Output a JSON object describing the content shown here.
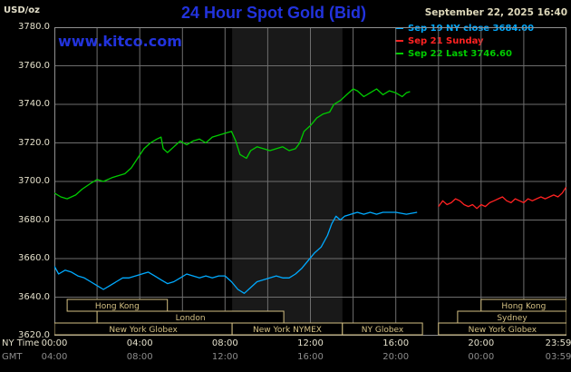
{
  "header": {
    "units_label": "USD/oz",
    "title": "24 Hour Spot Gold (Bid)",
    "datetime": "September 22, 2025 16:40",
    "watermark": "www.kitco.com"
  },
  "legend": {
    "items": [
      {
        "label": "Sep 19 NY close 3684.00",
        "color": "#00aaff"
      },
      {
        "label": "Sep 21 Sunday",
        "color": "#ff2222"
      },
      {
        "label": "Sep 22 Last 3746.60",
        "color": "#00cc00"
      }
    ]
  },
  "colors": {
    "background": "#000000",
    "grid": "#6e6e6e",
    "border": "#909090",
    "band": "#191919",
    "session": "#d4c083",
    "axis_text": "#e3dfca",
    "axis_text_dim": "#8c8c8c",
    "title_blue": "#2233dd",
    "date_text": "#ded8ba"
  },
  "chart_data": {
    "type": "line",
    "title": "24 Hour Spot Gold (Bid)",
    "ylabel": "USD/oz",
    "ylim": [
      3620,
      3780
    ],
    "y_tick_step": 20,
    "y_tick_labels": [
      "3780.0",
      "3760.0",
      "3740.0",
      "3720.0",
      "3700.0",
      "3680.0",
      "3660.0",
      "3640.0",
      "3620.0"
    ],
    "x_hours_range": [
      0,
      24
    ],
    "grid": {
      "vertical_step_hours": 2,
      "horizontal_step": 20,
      "on": true
    },
    "highlight_band_hours": [
      8.33,
      13.5
    ],
    "x_axis": {
      "row1_label": "NY Time",
      "row2_label": "GMT",
      "tick_hours": [
        0,
        4,
        8,
        12,
        16,
        20,
        24
      ],
      "row1_tick_labels": [
        "00:00",
        "04:00",
        "08:00",
        "12:00",
        "16:00",
        "20:00",
        "23:59"
      ],
      "row2_tick_labels": [
        "04:00",
        "08:00",
        "12:00",
        "16:00",
        "20:00",
        "00:00",
        "03:59"
      ]
    },
    "legend_position": "top-right",
    "series": [
      {
        "name": "Sep 19",
        "description": "NY close",
        "close": 3684.0,
        "color": "#00aaff",
        "points": [
          [
            0,
            3656
          ],
          [
            0.2,
            3652
          ],
          [
            0.5,
            3654
          ],
          [
            0.8,
            3653
          ],
          [
            1.1,
            3651
          ],
          [
            1.4,
            3650
          ],
          [
            1.7,
            3648
          ],
          [
            2,
            3646
          ],
          [
            2.3,
            3644
          ],
          [
            2.6,
            3646
          ],
          [
            2.9,
            3648
          ],
          [
            3.2,
            3650
          ],
          [
            3.5,
            3650
          ],
          [
            3.8,
            3651
          ],
          [
            4.1,
            3652
          ],
          [
            4.4,
            3653
          ],
          [
            4.7,
            3651
          ],
          [
            5,
            3649
          ],
          [
            5.3,
            3647
          ],
          [
            5.6,
            3648
          ],
          [
            5.9,
            3650
          ],
          [
            6.2,
            3652
          ],
          [
            6.5,
            3651
          ],
          [
            6.8,
            3650
          ],
          [
            7.1,
            3651
          ],
          [
            7.4,
            3650
          ],
          [
            7.7,
            3651
          ],
          [
            8,
            3651
          ],
          [
            8.3,
            3648
          ],
          [
            8.6,
            3644
          ],
          [
            8.9,
            3642
          ],
          [
            9.2,
            3645
          ],
          [
            9.5,
            3648
          ],
          [
            9.8,
            3649
          ],
          [
            10.1,
            3650
          ],
          [
            10.4,
            3651
          ],
          [
            10.7,
            3650
          ],
          [
            11,
            3650
          ],
          [
            11.3,
            3652
          ],
          [
            11.6,
            3655
          ],
          [
            11.9,
            3659
          ],
          [
            12.2,
            3663
          ],
          [
            12.5,
            3666
          ],
          [
            12.8,
            3672
          ],
          [
            13,
            3678
          ],
          [
            13.2,
            3682
          ],
          [
            13.4,
            3680
          ],
          [
            13.6,
            3682
          ],
          [
            13.9,
            3683
          ],
          [
            14.2,
            3684
          ],
          [
            14.5,
            3683
          ],
          [
            14.8,
            3684
          ],
          [
            15.1,
            3683
          ],
          [
            15.4,
            3684
          ],
          [
            15.7,
            3684
          ],
          [
            16,
            3684
          ],
          [
            16.5,
            3683
          ],
          [
            17,
            3684
          ]
        ]
      },
      {
        "name": "Sep 21",
        "description": "Sunday",
        "color": "#ff2222",
        "points": [
          [
            18,
            3687
          ],
          [
            18.2,
            3690
          ],
          [
            18.4,
            3688
          ],
          [
            18.6,
            3689
          ],
          [
            18.8,
            3691
          ],
          [
            19,
            3690
          ],
          [
            19.2,
            3688
          ],
          [
            19.4,
            3687
          ],
          [
            19.6,
            3688
          ],
          [
            19.8,
            3686
          ],
          [
            20,
            3688
          ],
          [
            20.2,
            3687
          ],
          [
            20.4,
            3689
          ],
          [
            20.6,
            3690
          ],
          [
            20.8,
            3691
          ],
          [
            21,
            3692
          ],
          [
            21.2,
            3690
          ],
          [
            21.4,
            3689
          ],
          [
            21.6,
            3691
          ],
          [
            21.8,
            3690
          ],
          [
            22,
            3689
          ],
          [
            22.2,
            3691
          ],
          [
            22.4,
            3690
          ],
          [
            22.6,
            3691
          ],
          [
            22.8,
            3692
          ],
          [
            23,
            3691
          ],
          [
            23.2,
            3692
          ],
          [
            23.4,
            3693
          ],
          [
            23.6,
            3692
          ],
          [
            23.8,
            3694
          ],
          [
            23.98,
            3697
          ]
        ]
      },
      {
        "name": "Sep 22",
        "description": "Last",
        "last": 3746.6,
        "color": "#00cc00",
        "points": [
          [
            0,
            3694
          ],
          [
            0.3,
            3692
          ],
          [
            0.6,
            3691
          ],
          [
            1,
            3693
          ],
          [
            1.3,
            3696
          ],
          [
            1.7,
            3699
          ],
          [
            2,
            3701
          ],
          [
            2.3,
            3700
          ],
          [
            2.7,
            3702
          ],
          [
            3,
            3703
          ],
          [
            3.3,
            3704
          ],
          [
            3.6,
            3707
          ],
          [
            3.9,
            3712
          ],
          [
            4.2,
            3717
          ],
          [
            4.5,
            3720
          ],
          [
            4.8,
            3722
          ],
          [
            5,
            3723
          ],
          [
            5.1,
            3717
          ],
          [
            5.3,
            3715
          ],
          [
            5.6,
            3718
          ],
          [
            5.9,
            3721
          ],
          [
            6.2,
            3719
          ],
          [
            6.5,
            3721
          ],
          [
            6.8,
            3722
          ],
          [
            7.1,
            3720
          ],
          [
            7.4,
            3723
          ],
          [
            7.7,
            3724
          ],
          [
            8,
            3725
          ],
          [
            8.3,
            3726
          ],
          [
            8.5,
            3721
          ],
          [
            8.7,
            3714
          ],
          [
            9,
            3712
          ],
          [
            9.2,
            3716
          ],
          [
            9.5,
            3718
          ],
          [
            9.8,
            3717
          ],
          [
            10.1,
            3716
          ],
          [
            10.4,
            3717
          ],
          [
            10.7,
            3718
          ],
          [
            11,
            3716
          ],
          [
            11.3,
            3717
          ],
          [
            11.5,
            3720
          ],
          [
            11.7,
            3726
          ],
          [
            12,
            3729
          ],
          [
            12.3,
            3733
          ],
          [
            12.6,
            3735
          ],
          [
            12.9,
            3736
          ],
          [
            13.1,
            3740
          ],
          [
            13.4,
            3742
          ],
          [
            13.7,
            3745
          ],
          [
            14,
            3748
          ],
          [
            14.2,
            3747
          ],
          [
            14.5,
            3744
          ],
          [
            14.8,
            3746
          ],
          [
            15.1,
            3748
          ],
          [
            15.4,
            3745
          ],
          [
            15.7,
            3747
          ],
          [
            16,
            3746
          ],
          [
            16.3,
            3744
          ],
          [
            16.5,
            3746
          ],
          [
            16.67,
            3746.6
          ]
        ]
      }
    ],
    "sessions": [
      {
        "row": 0,
        "label": "Hong Kong",
        "start": 0.6,
        "end": 5.3
      },
      {
        "row": 0,
        "label": "Hong Kong",
        "start": 20.0,
        "end": 24.0
      },
      {
        "row": 1,
        "label": "London",
        "start": 2.0,
        "end": 10.75
      },
      {
        "row": 1,
        "label": "Sydney",
        "start": 18.9,
        "end": 24.0
      },
      {
        "row": 2,
        "label": "New York Globex",
        "start": 0.0,
        "end": 8.33
      },
      {
        "row": 2,
        "label": "New York NYMEX",
        "start": 8.33,
        "end": 13.5
      },
      {
        "row": 2,
        "label": "NY Globex",
        "start": 13.5,
        "end": 17.25
      },
      {
        "row": 2,
        "label": "New York Globex",
        "start": 18.0,
        "end": 24.0
      }
    ]
  }
}
